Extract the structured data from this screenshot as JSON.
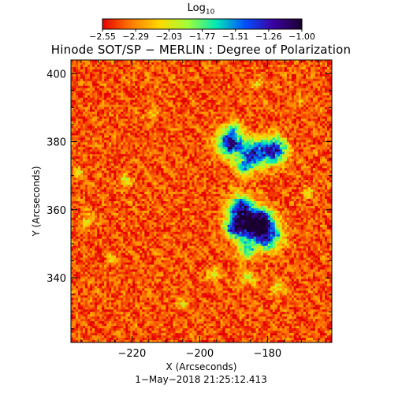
{
  "colorbar": {
    "title_base": "Log",
    "title_sub": "10",
    "ticks": [
      "−2.55",
      "−2.29",
      "−2.03",
      "−1.77",
      "−1.51",
      "−1.26",
      "−1.00"
    ],
    "colors": [
      "#e60000",
      "#ff7a00",
      "#ffd800",
      "#9fff3a",
      "#00e8b8",
      "#0050ff",
      "#3c00a0",
      "#1a0030"
    ]
  },
  "title": "Hinode SOT/SP − MERLIN : Degree of Polarization",
  "footer": "1−May−2018 21:25:12.413",
  "chart_data": {
    "type": "heatmap",
    "title": "Hinode SOT/SP − MERLIN : Degree of Polarization",
    "xlabel": "X (Arcseconds)",
    "ylabel": "Y (Arcseconds)",
    "xlim": [
      -238,
      -161
    ],
    "ylim": [
      321,
      404
    ],
    "xticks": [
      -220,
      -200,
      -180
    ],
    "yticks": [
      340,
      360,
      380,
      400
    ],
    "colorbar_label": "Log10",
    "colorbar_range": [
      -2.55,
      -1.0
    ],
    "background_value": -2.4,
    "features": [
      {
        "name": "upper-cluster",
        "x": -185,
        "y": 378,
        "peak": -1.05
      },
      {
        "name": "lower-cluster",
        "x": -184,
        "y": 356,
        "peak": -1.0
      }
    ]
  }
}
